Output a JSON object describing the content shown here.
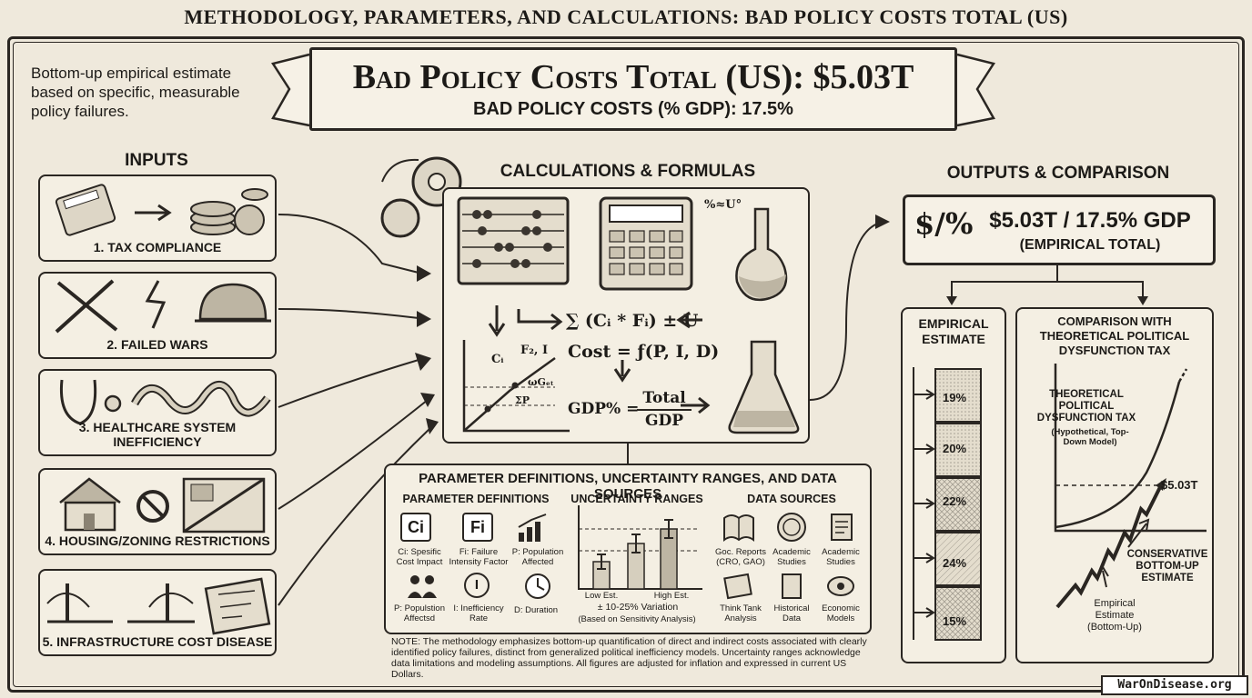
{
  "page_title": "METHODOLOGY, PARAMETERS, AND CALCULATIONS: BAD POLICY COSTS TOTAL (US)",
  "intro_text": "Bottom-up empirical estimate based on specific, measurable policy failures.",
  "banner": {
    "main": "Bad Policy Costs Total (US): $5.03T",
    "sub": "BAD POLICY COSTS (% GDP): 17.5%"
  },
  "inputs": {
    "heading": "INPUTS",
    "items": [
      {
        "label": "1. TAX COMPLIANCE",
        "icons": [
          "calculator-icon",
          "arrow-right-icon",
          "coin-stack-icon"
        ]
      },
      {
        "label": "2. FAILED WARS",
        "icons": [
          "crossed-swords-icon",
          "lightning-crack-icon",
          "helmet-icon"
        ]
      },
      {
        "label": "3. HEALTHCARE SYSTEM INEFFICIENCY",
        "icons": [
          "stethoscope-icon",
          "tangled-pipes-icon"
        ]
      },
      {
        "label": "4. HOUSING/ZONING RESTRICTIONS",
        "icons": [
          "house-icon",
          "prohibited-icon",
          "zoning-map-icon"
        ]
      },
      {
        "label": "5. INFRASTRUCTURE COST DISEASE",
        "icons": [
          "broken-bridge-icon",
          "blueprint-icon"
        ]
      }
    ]
  },
  "calculations": {
    "heading": "CALCULATIONS & FORMULAS",
    "sum_formula": "∑ (Cᵢ * Fᵢ) ± U",
    "cost_formula": "Cost = ƒ(P, I, D)",
    "gdp_lhs": "GDP% =",
    "gdp_num": "Total",
    "gdp_den": "GDP",
    "side_note": "%≈U°",
    "graph_labels": [
      "Cᵢ",
      "F₂, I",
      "ωGₑₜ",
      "ΣP"
    ],
    "icons": [
      "gears-icon",
      "abacus-icon",
      "calculator-icon",
      "flask-icon",
      "beaker-icon",
      "line-graph-icon"
    ]
  },
  "parameters": {
    "title": "PARAMETER DEFINITIONS, UNCERTAINTY RANGES, AND DATA SOURCES",
    "definitions": {
      "heading": "PARAMETER DEFINITIONS",
      "items": [
        {
          "symbol": "Ci",
          "desc": "Ci: Spesific Cost Impact"
        },
        {
          "symbol": "Fi",
          "desc": "Fi: Failure Intensity Factor"
        },
        {
          "symbol": "",
          "desc": "P: Population Affected"
        },
        {
          "symbol": "",
          "desc": "P: Populstion Affectsd"
        },
        {
          "symbol": "I",
          "desc": "I: Inefficiency Rate"
        },
        {
          "symbol": "",
          "desc": "D: Duration"
        }
      ]
    },
    "uncertainty": {
      "heading": "UNCERTAINTY RANGES",
      "low_label": "Low Est.",
      "high_label": "High Est.",
      "variation": "± 10-25% Variation",
      "basis": "(Based on Sensitivity Analysis)"
    },
    "sources": {
      "heading": "DATA SOURCES",
      "items": [
        {
          "label": "Goc. Reports (CRO, GAO)",
          "icon": "book-icon"
        },
        {
          "label": "Academic Studies",
          "icon": "seal-icon"
        },
        {
          "label": "Academic Studies",
          "icon": "scroll-icon"
        },
        {
          "label": "Think Tank Analysis",
          "icon": "papers-icon"
        },
        {
          "label": "Historical Data",
          "icon": "document-icon"
        },
        {
          "label": "Economic Models",
          "icon": "model-icon"
        }
      ]
    }
  },
  "note": "NOTE: The methodology emphasizes bottom-up quantification of direct and indirect costs associated with clearly identified policy failures, distinct from generalized political inefficiency models. Uncertainty ranges acknowledge data limitations and modeling assumptions. All figures are adjusted for inflation and expressed in current US Dollars.",
  "outputs": {
    "heading": "OUTPUTS & COMPARISON",
    "symbol": "$/%",
    "value": "$5.03T / 17.5% GDP",
    "caption": "(EMPIRICAL TOTAL)"
  },
  "empirical": {
    "title": "EMPIRICAL ESTIMATE",
    "segments": [
      "19%",
      "20%",
      "22%",
      "24%",
      "15%"
    ]
  },
  "comparison": {
    "title": "COMPARISON WITH THEORETICAL POLITICAL DYSFUNCTION TAX",
    "theoretical_label": "THEORETICAL POLITICAL DYSFUNCTION TAX",
    "theoretical_sub": "(Hypothetical, Top-Down Model)",
    "value_label": "$5.03T",
    "conservative_label": "CONSERVATIVE BOTTOM-UP ESTIMATE",
    "empirical_label": "Empirical Estimate (Bottom-Up)"
  },
  "watermark": "WarOnDisease.org",
  "colors": {
    "ink": "#2a2622",
    "paper": "#efe9dc",
    "panel": "#f4efe3"
  }
}
